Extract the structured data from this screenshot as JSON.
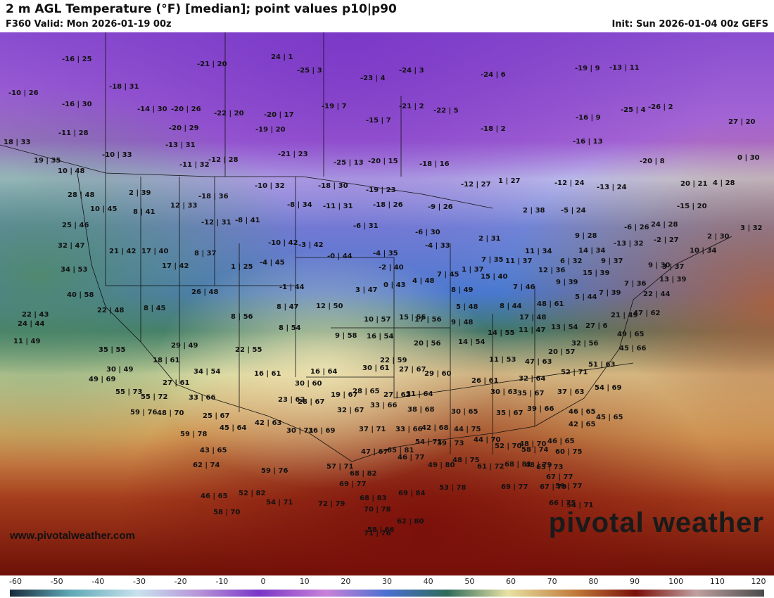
{
  "header": {
    "title": "2 m AGL Temperature (°F) [median]; point values p10|p90",
    "valid": "F360 Valid: Mon 2026-01-19 00z",
    "init": "Init: Sun 2026-01-04 00z GEFS"
  },
  "watermark": "pivotal weather",
  "site": "www.pivotalweather.com",
  "colorbar": {
    "ticks": [
      "-60",
      "-50",
      "-40",
      "-30",
      "-20",
      "-10",
      "0",
      "10",
      "20",
      "30",
      "40",
      "50",
      "60",
      "70",
      "80",
      "90",
      "100",
      "110",
      "120"
    ]
  },
  "points": [
    "-16 | 25",
    "-10 | 26",
    "-16 | 30",
    "-18 | 31",
    "-11 | 28",
    "-10 | 33",
    "-14 | 30",
    "-20 | 26",
    "-20 | 29",
    "-13 | 31",
    "-11 | 32",
    "-21 | 20",
    "-22 | 20",
    "-20 | 17",
    "-19 | 20",
    "-12 | 28",
    "24 | 1",
    "-25 | 3",
    "-23 | 4",
    "-24 | 3",
    "-24 | 6",
    "-19 | 7",
    "-21 | 2",
    "-22 | 5",
    "-15 | 7",
    "-18 | 2",
    "-21 | 23",
    "-25 | 13",
    "-20 | 15",
    "-18 | 16",
    "-19 | 9",
    "-13 | 11",
    "-25 | 4",
    "-26 | 2",
    "-16 | 9",
    "-16 | 13",
    "27 | 20",
    "0 | 30",
    "-20 | 8",
    "20 | 21",
    "4 | 28",
    "18 | 33",
    "19 | 35",
    "10 | 48",
    "28 | 48",
    "2 | 39",
    "12 | 33",
    "-18 | 36",
    "-10 | 32",
    "-18 | 30",
    "-19 | 23",
    "-12 | 27",
    "-12 | 24",
    "-13 | 24",
    "1 | 27",
    "-8 | 34",
    "-11 | 31",
    "-18 | 26",
    "-9 | 26",
    "-15 | 20",
    "10 | 45",
    "8 | 41",
    "-12 | 31",
    "-8 | 41",
    "-6 | 31",
    "2 | 38",
    "-5 | 24",
    "-6 | 26",
    "24 | 28",
    "25 | 46",
    "21 | 42",
    "17 | 40",
    "8 | 37",
    "-10 | 42",
    "-3 | 42",
    "-6 | 30",
    "-4 | 33",
    "2 | 31",
    "9 | 28",
    "-13 | 32",
    "-2 | 27",
    "2 | 30",
    "3 | 32",
    "32 | 47",
    "34 | 53",
    "17 | 42",
    "1 | 25",
    "-4 | 45",
    "-0 | 44",
    "-4 | 35",
    "7 | 35",
    "11 | 37",
    "11 | 34",
    "14 | 34",
    "9 | 37",
    "10 | 34",
    "-2 | 40",
    "6 | 32",
    "12 | 36",
    "9 | 30",
    "15 | 39",
    "3 | 37",
    "7 | 36",
    "13 | 39",
    "9 | 39",
    "40 | 58",
    "26 | 48",
    "-1 | 44",
    "3 | 47",
    "0 | 43",
    "4 | 48",
    "7 | 45",
    "8 | 49",
    "1 | 37",
    "15 | 40",
    "7 | 46",
    "7 | 39",
    "22 | 44",
    "5 | 44",
    "22 | 43",
    "22 | 48",
    "8 | 45",
    "8 | 47",
    "12 | 50",
    "5 | 48",
    "8 | 44",
    "48 | 61",
    "24 | 44",
    "8 | 56",
    "10 | 57",
    "15 | 55",
    "17 | 56",
    "9 | 48",
    "17 | 48",
    "21 | 49",
    "47 | 62",
    "11 | 49",
    "8 | 54",
    "9 | 58",
    "16 | 54",
    "14 | 55",
    "11 | 47",
    "13 | 54",
    "27 | 6",
    "49 | 65",
    "35 | 55",
    "29 | 49",
    "22 | 55",
    "20 | 56",
    "14 | 54",
    "32 | 56",
    "45 | 66",
    "18 | 61",
    "22 | 59",
    "11 | 53",
    "20 | 57",
    "47 | 63",
    "30 | 49",
    "34 | 54",
    "16 | 61",
    "16 | 64",
    "30 | 61",
    "27 | 67",
    "51 | 63",
    "49 | 69",
    "27 | 61",
    "30 | 60",
    "29 | 60",
    "26 | 61",
    "32 | 64",
    "52 | 71",
    "55 | 73",
    "55 | 72",
    "33 | 66",
    "23 | 62",
    "19 | 67",
    "28 | 65",
    "27 | 62",
    "31 | 64",
    "30 | 63",
    "35 | 67",
    "37 | 63",
    "54 | 69",
    "59 | 76",
    "48 | 70",
    "25 | 67",
    "28 | 67",
    "32 | 67",
    "33 | 66",
    "38 | 68",
    "30 | 65",
    "35 | 67",
    "39 | 66",
    "46 | 65",
    "45 | 65",
    "42 | 65",
    "59 | 78",
    "45 | 64",
    "42 | 63",
    "30 | 71",
    "36 | 69",
    "37 | 71",
    "33 | 66",
    "42 | 68",
    "44 | 75",
    "44 | 70",
    "48 | 70",
    "46 | 65",
    "43 | 65",
    "47 | 67",
    "65 | 81",
    "54 | 71",
    "39 | 73",
    "46 | 77",
    "52 | 70",
    "58 | 74",
    "60 | 75",
    "62 | 74",
    "59 | 76",
    "68 | 82",
    "57 | 71",
    "49 | 80",
    "48 | 75",
    "61 | 72",
    "68 | 81",
    "48 | 79",
    "65 | 73",
    "67 | 77",
    "59 | 77",
    "46 | 65",
    "52 | 82",
    "69 | 77",
    "68 | 83",
    "69 | 84",
    "53 | 78",
    "69 | 77",
    "67 | 79",
    "58 | 70",
    "54 | 71",
    "72 | 79",
    "70 | 78",
    "71 | 76",
    "58 | 66",
    "62 | 80",
    "66 | 75",
    "54 | 71"
  ]
}
